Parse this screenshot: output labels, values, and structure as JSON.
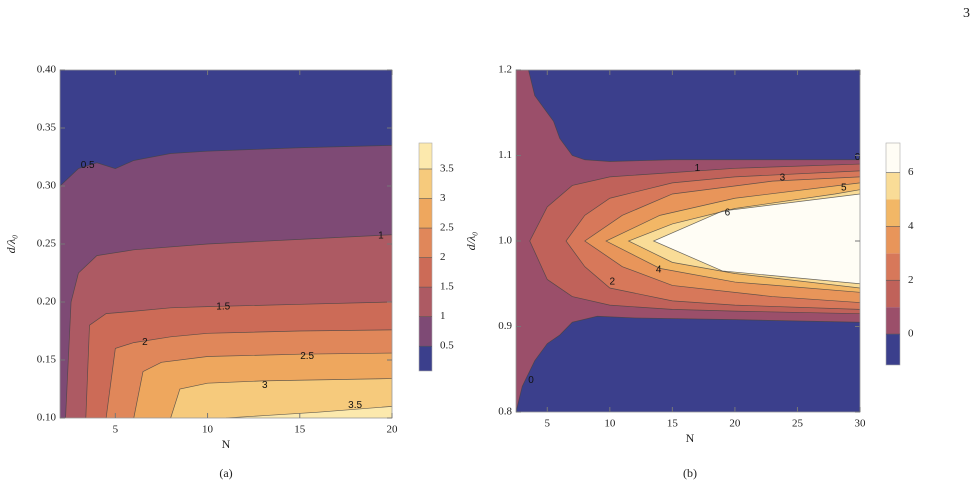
{
  "page_number": "3",
  "chart_data": [
    {
      "type": "contour",
      "caption": "(a)",
      "x_label": "N",
      "y_label": "d/λ₀",
      "xlim": [
        2,
        20
      ],
      "ylim": [
        0.1,
        0.4
      ],
      "xticks": [
        5,
        10,
        15,
        20
      ],
      "yticks": [
        {
          "value": 0.1,
          "label": "0.10"
        },
        0.15,
        {
          "value": 0.2,
          "label": "0.20"
        },
        0.25,
        {
          "value": 0.3,
          "label": "0.30"
        },
        0.35,
        {
          "value": 0.4,
          "label": "0.40"
        }
      ],
      "fill_side": "below",
      "fill_colors": [
        "#3b3f8c",
        "#7e4a75",
        "#ad5a63",
        "#cc6b57",
        "#e0875a",
        "#eea75e",
        "#f6ca7c",
        "#fce9ad"
      ],
      "contours": [
        {
          "level": 0.5,
          "x": [
            2,
            3,
            4,
            5,
            6,
            8,
            10,
            15,
            20
          ],
          "y": [
            0.3,
            0.315,
            0.32,
            0.315,
            0.322,
            0.328,
            0.33,
            0.333,
            0.335
          ]
        },
        {
          "level": 1,
          "x": [
            2.3,
            2.6,
            3,
            4,
            6,
            10,
            15,
            20
          ],
          "y": [
            0.1,
            0.2,
            0.225,
            0.24,
            0.245,
            0.25,
            0.254,
            0.258
          ]
        },
        {
          "level": 1.5,
          "x": [
            3.4,
            3.6,
            4.5,
            6,
            8,
            10,
            15,
            20
          ],
          "y": [
            0.1,
            0.18,
            0.19,
            0.192,
            0.195,
            0.196,
            0.198,
            0.2
          ]
        },
        {
          "level": 2,
          "x": [
            4.5,
            5,
            6,
            8,
            10,
            15,
            20
          ],
          "y": [
            0.1,
            0.16,
            0.165,
            0.17,
            0.173,
            0.175,
            0.176
          ]
        },
        {
          "level": 2.5,
          "x": [
            6,
            6.5,
            7.5,
            10,
            15,
            20
          ],
          "y": [
            0.1,
            0.14,
            0.148,
            0.153,
            0.155,
            0.156
          ]
        },
        {
          "level": 3,
          "x": [
            8,
            8.5,
            10,
            13,
            20
          ],
          "y": [
            0.1,
            0.125,
            0.13,
            0.132,
            0.134
          ]
        },
        {
          "level": 3.5,
          "x": [
            11,
            13,
            16,
            20
          ],
          "y": [
            0.1,
            0.102,
            0.105,
            0.11
          ]
        }
      ],
      "contour_labels": [
        {
          "value": 0.5,
          "x": 3.5,
          "y": 0.318
        },
        {
          "value": 1,
          "x": 19.4,
          "y": 0.257
        },
        {
          "value": 1.5,
          "x": 10.85,
          "y": 0.196
        },
        {
          "value": 2,
          "x": 6.6,
          "y": 0.165
        },
        {
          "value": 2.5,
          "x": 15.4,
          "y": 0.153
        },
        {
          "value": 3,
          "x": 13.1,
          "y": 0.128
        },
        {
          "value": 3.5,
          "x": 18,
          "y": 0.111
        }
      ],
      "colorbar": {
        "lim": [
          0.08,
          3.94
        ],
        "ticks": [
          0.5,
          1,
          1.5,
          2,
          2.5,
          3,
          3.5
        ]
      }
    },
    {
      "type": "contour",
      "caption": "(b)",
      "x_label": "N",
      "y_label": "d/λ₀",
      "xlim": [
        2.5,
        30
      ],
      "ylim": [
        0.8,
        1.2
      ],
      "xticks": [
        5,
        10,
        15,
        20,
        25,
        30
      ],
      "yticks": [
        0.8,
        0.9,
        {
          "value": 1,
          "label": "1.0"
        },
        1.1,
        1.2
      ],
      "fill_side": "inside",
      "fill_colors": [
        "#3b3f8c",
        "#9b4f6a",
        "#c0625a",
        "#d7785a",
        "#e8955a",
        "#f2b766",
        "#f9dc97",
        "#fffdf5"
      ],
      "contours": [
        {
          "level": 0,
          "x": [
            30,
            20,
            15,
            10,
            8,
            7,
            6,
            5.5,
            5,
            4,
            3.5,
            2.5,
            2.5,
            3,
            4,
            5,
            6,
            7,
            9,
            12,
            20,
            30
          ],
          "y": [
            1.095,
            1.095,
            1.095,
            1.093,
            1.095,
            1.1,
            1.12,
            1.14,
            1.15,
            1.17,
            1.2,
            1.2,
            0.8,
            0.83,
            0.86,
            0.88,
            0.89,
            0.905,
            0.912,
            0.91,
            0.908,
            0.905
          ]
        },
        {
          "level": 1,
          "x": [
            30,
            20,
            15,
            10,
            7,
            5,
            3.6,
            5,
            7,
            10,
            15,
            20,
            30
          ],
          "y": [
            1.09,
            1.085,
            1.08,
            1.075,
            1.065,
            1.04,
            1,
            0.955,
            0.935,
            0.925,
            0.92,
            0.918,
            0.915
          ]
        },
        {
          "level": 2,
          "x": [
            30,
            20,
            15,
            10,
            8,
            6.5,
            8,
            10,
            15,
            20,
            30
          ],
          "y": [
            1.082,
            1.075,
            1.068,
            1.05,
            1.03,
            1,
            0.97,
            0.945,
            0.93,
            0.925,
            0.92
          ]
        },
        {
          "level": 3,
          "x": [
            30,
            23,
            15,
            11,
            8,
            11,
            15,
            23,
            30
          ],
          "y": [
            1.075,
            1.07,
            1.055,
            1.03,
            1,
            0.97,
            0.948,
            0.935,
            0.928
          ]
        },
        {
          "level": 4,
          "x": [
            30,
            20,
            14,
            9.7,
            14,
            20,
            30
          ],
          "y": [
            1.068,
            1.05,
            1.03,
            1,
            0.968,
            0.952,
            0.94
          ]
        },
        {
          "level": 5,
          "x": [
            30,
            28,
            20,
            15,
            11.5,
            15,
            20,
            30
          ],
          "y": [
            1.06,
            1.055,
            1.038,
            1.02,
            1,
            0.975,
            0.962,
            0.945
          ]
        },
        {
          "level": 6,
          "x": [
            30,
            19,
            13.5,
            19,
            30
          ],
          "y": [
            1.055,
            1.035,
            1,
            0.965,
            0.95
          ]
        }
      ],
      "contour_labels": [
        {
          "value": 0,
          "x": 29.8,
          "y": 1.098
        },
        {
          "value": 0,
          "x": 3.7,
          "y": 0.837
        },
        {
          "value": 1,
          "x": 17,
          "y": 1.085
        },
        {
          "value": 2,
          "x": 10.2,
          "y": 0.952
        },
        {
          "value": 3,
          "x": 23.8,
          "y": 1.074
        },
        {
          "value": 4,
          "x": 13.9,
          "y": 0.966
        },
        {
          "value": 5,
          "x": 28.7,
          "y": 1.062
        },
        {
          "value": 6,
          "x": 19.4,
          "y": 1.033
        }
      ],
      "colorbar": {
        "lim": [
          -1.15,
          7.1
        ],
        "ticks": [
          0,
          2,
          4,
          6
        ]
      }
    }
  ]
}
